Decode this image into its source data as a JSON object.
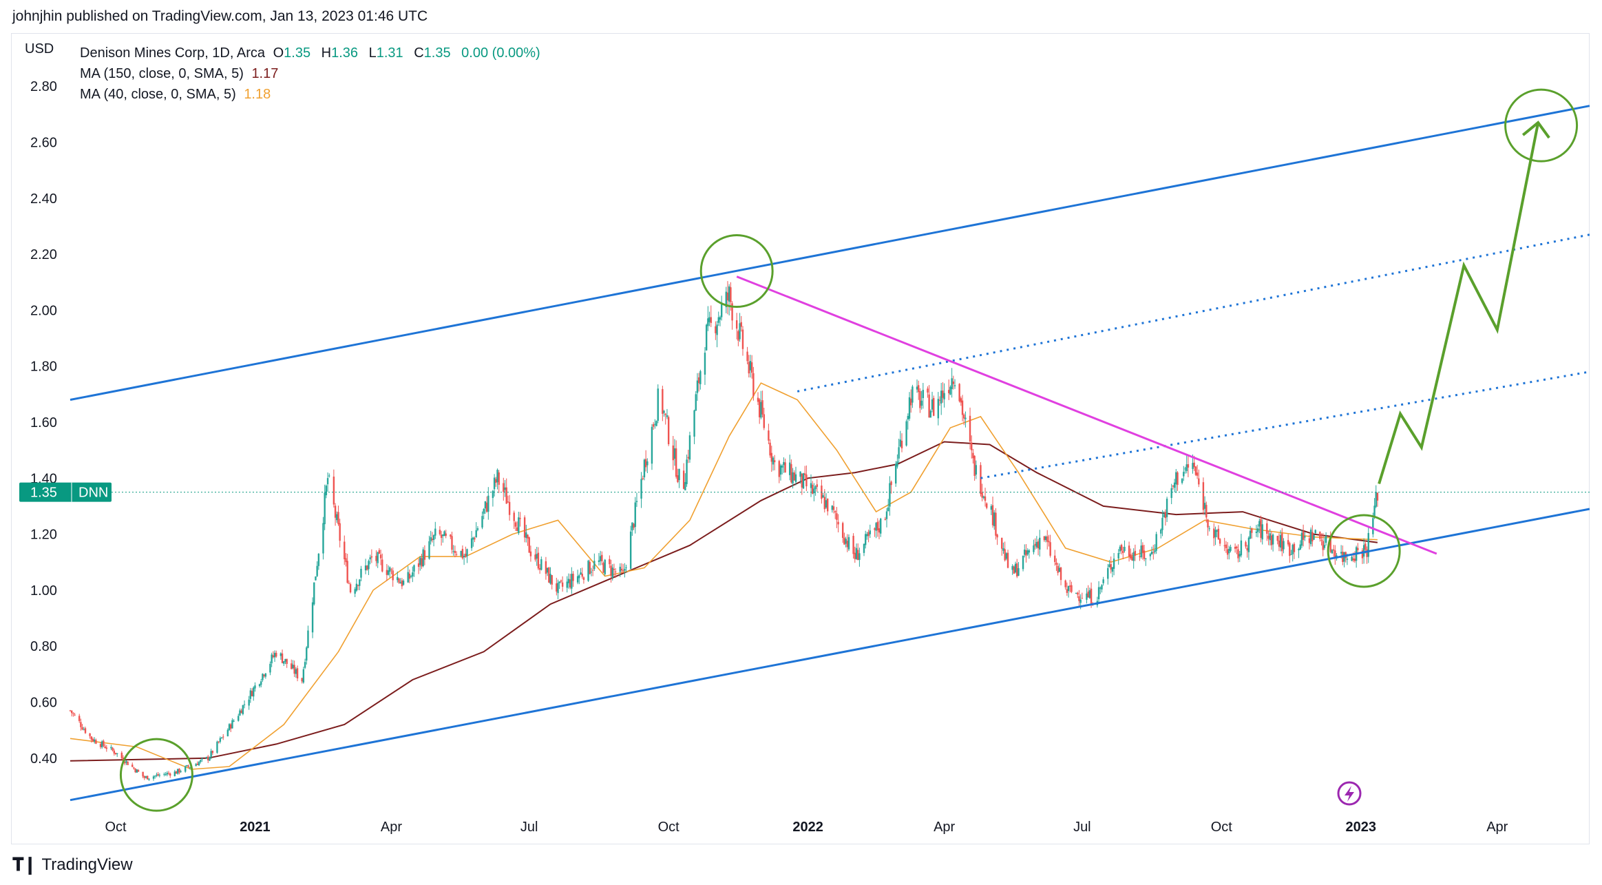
{
  "header": {
    "publish_text": "johnjhin published on TradingView.com, Jan 13, 2023 01:46 UTC"
  },
  "legend": {
    "currency": "USD",
    "symbol_line": "Denison Mines Corp, 1D, Arca",
    "ohlc": {
      "o_label": "O",
      "o": "1.35",
      "h_label": "H",
      "h": "1.36",
      "l_label": "L",
      "l": "1.31",
      "c_label": "C",
      "c": "1.35",
      "change": "0.00 (0.00%)"
    },
    "ma150": {
      "label": "MA (150, close, 0, SMA, 5)",
      "value": "1.17"
    },
    "ma40": {
      "label": "MA (40, close, 0, SMA, 5)",
      "value": "1.18"
    }
  },
  "price_badge": {
    "price": "1.35",
    "ticker": "DNN"
  },
  "footer": {
    "brand": "TradingView",
    "brand_icon": "tradingview-logo-icon"
  },
  "colors": {
    "up": "#26a69a",
    "down": "#ef5350",
    "ma150": "#7b1c1c",
    "ma40": "#f0a030",
    "channel": "#1e74d6",
    "resistance": "#e040e0",
    "projection": "#5aa02c",
    "badge": "#089981"
  },
  "chart_data": {
    "type": "candlestick",
    "title": "Denison Mines Corp, 1D, Arca",
    "ylabel": "USD",
    "ylim": [
      0.21,
      2.99
    ],
    "y_ticks": [
      0.4,
      0.6,
      0.8,
      1.0,
      1.2,
      1.4,
      1.6,
      1.8,
      2.0,
      2.2,
      2.4,
      2.6,
      2.8
    ],
    "y_tick_labels": [
      "0.40",
      "0.60",
      "0.80",
      "1.00",
      "1.20",
      "1.40",
      "1.60",
      "1.80",
      "2.00",
      "2.20",
      "2.40",
      "2.60",
      "2.80"
    ],
    "xlim": [
      "2020-09-01",
      "2023-06-01"
    ],
    "x_ticks": [
      {
        "date": "2020-10-01",
        "label": "Oct"
      },
      {
        "date": "2021-01-01",
        "label": "2021"
      },
      {
        "date": "2021-04-01",
        "label": "Apr"
      },
      {
        "date": "2021-07-01",
        "label": "Jul"
      },
      {
        "date": "2021-10-01",
        "label": "Oct"
      },
      {
        "date": "2022-01-01",
        "label": "2022"
      },
      {
        "date": "2022-04-01",
        "label": "Apr"
      },
      {
        "date": "2022-07-01",
        "label": "Jul"
      },
      {
        "date": "2022-10-01",
        "label": "Oct"
      },
      {
        "date": "2023-01-01",
        "label": "2023"
      },
      {
        "date": "2023-04-01",
        "label": "Apr"
      }
    ],
    "price_key_points": [
      [
        "2020-09-01",
        0.57
      ],
      [
        "2020-09-15",
        0.47
      ],
      [
        "2020-10-01",
        0.42
      ],
      [
        "2020-10-20",
        0.33
      ],
      [
        "2020-11-10",
        0.35
      ],
      [
        "2020-12-01",
        0.4
      ],
      [
        "2020-12-20",
        0.55
      ],
      [
        "2021-01-15",
        0.78
      ],
      [
        "2021-02-01",
        0.68
      ],
      [
        "2021-02-18",
        1.4
      ],
      [
        "2021-03-05",
        1.0
      ],
      [
        "2021-03-20",
        1.12
      ],
      [
        "2021-04-10",
        1.02
      ],
      [
        "2021-05-01",
        1.2
      ],
      [
        "2021-05-20",
        1.12
      ],
      [
        "2021-06-10",
        1.4
      ],
      [
        "2021-07-01",
        1.15
      ],
      [
        "2021-07-20",
        1.0
      ],
      [
        "2021-08-15",
        1.1
      ],
      [
        "2021-09-01",
        1.05
      ],
      [
        "2021-09-15",
        1.45
      ],
      [
        "2021-09-25",
        1.7
      ],
      [
        "2021-10-10",
        1.35
      ],
      [
        "2021-10-25",
        1.9
      ],
      [
        "2021-11-10",
        2.05
      ],
      [
        "2021-11-25",
        1.75
      ],
      [
        "2021-12-10",
        1.45
      ],
      [
        "2021-12-25",
        1.4
      ],
      [
        "2022-01-15",
        1.3
      ],
      [
        "2022-02-01",
        1.12
      ],
      [
        "2022-02-20",
        1.25
      ],
      [
        "2022-03-10",
        1.7
      ],
      [
        "2022-03-25",
        1.65
      ],
      [
        "2022-04-08",
        1.78
      ],
      [
        "2022-04-20",
        1.45
      ],
      [
        "2022-05-01",
        1.3
      ],
      [
        "2022-05-15",
        1.05
      ],
      [
        "2022-06-05",
        1.2
      ],
      [
        "2022-06-20",
        1.0
      ],
      [
        "2022-07-10",
        0.97
      ],
      [
        "2022-07-25",
        1.15
      ],
      [
        "2022-08-15",
        1.12
      ],
      [
        "2022-09-01",
        1.4
      ],
      [
        "2022-09-12",
        1.45
      ],
      [
        "2022-09-25",
        1.2
      ],
      [
        "2022-10-10",
        1.12
      ],
      [
        "2022-10-25",
        1.22
      ],
      [
        "2022-11-15",
        1.15
      ],
      [
        "2022-12-01",
        1.2
      ],
      [
        "2022-12-20",
        1.12
      ],
      [
        "2023-01-05",
        1.15
      ],
      [
        "2023-01-12",
        1.35
      ]
    ],
    "ma150_key_points": [
      [
        "2020-09-01",
        0.39
      ],
      [
        "2020-12-01",
        0.4
      ],
      [
        "2021-01-15",
        0.45
      ],
      [
        "2021-03-01",
        0.52
      ],
      [
        "2021-04-15",
        0.68
      ],
      [
        "2021-06-01",
        0.78
      ],
      [
        "2021-07-15",
        0.95
      ],
      [
        "2021-09-01",
        1.06
      ],
      [
        "2021-10-15",
        1.16
      ],
      [
        "2021-12-01",
        1.32
      ],
      [
        "2022-01-01",
        1.4
      ],
      [
        "2022-02-01",
        1.42
      ],
      [
        "2022-03-01",
        1.45
      ],
      [
        "2022-04-01",
        1.53
      ],
      [
        "2022-05-01",
        1.52
      ],
      [
        "2022-06-01",
        1.42
      ],
      [
        "2022-07-15",
        1.3
      ],
      [
        "2022-09-01",
        1.27
      ],
      [
        "2022-10-15",
        1.28
      ],
      [
        "2022-12-01",
        1.2
      ],
      [
        "2023-01-12",
        1.17
      ]
    ],
    "ma40_key_points": [
      [
        "2020-09-01",
        0.47
      ],
      [
        "2020-10-15",
        0.44
      ],
      [
        "2020-11-20",
        0.36
      ],
      [
        "2020-12-15",
        0.37
      ],
      [
        "2021-01-20",
        0.52
      ],
      [
        "2021-02-25",
        0.78
      ],
      [
        "2021-03-20",
        1.0
      ],
      [
        "2021-04-20",
        1.12
      ],
      [
        "2021-05-20",
        1.12
      ],
      [
        "2021-06-20",
        1.2
      ],
      [
        "2021-07-20",
        1.25
      ],
      [
        "2021-08-20",
        1.05
      ],
      [
        "2021-09-15",
        1.08
      ],
      [
        "2021-10-15",
        1.25
      ],
      [
        "2021-11-10",
        1.55
      ],
      [
        "2021-12-01",
        1.74
      ],
      [
        "2021-12-25",
        1.68
      ],
      [
        "2022-01-20",
        1.5
      ],
      [
        "2022-02-15",
        1.28
      ],
      [
        "2022-03-10",
        1.35
      ],
      [
        "2022-04-05",
        1.58
      ],
      [
        "2022-04-25",
        1.62
      ],
      [
        "2022-05-20",
        1.42
      ],
      [
        "2022-06-20",
        1.15
      ],
      [
        "2022-07-20",
        1.1
      ],
      [
        "2022-08-20",
        1.15
      ],
      [
        "2022-09-20",
        1.25
      ],
      [
        "2022-10-20",
        1.22
      ],
      [
        "2022-12-01",
        1.19
      ],
      [
        "2023-01-12",
        1.18
      ]
    ],
    "drawings": {
      "channel_upper": [
        [
          "2020-09-01",
          1.68
        ],
        [
          "2023-06-01",
          2.73
        ]
      ],
      "channel_lower": [
        [
          "2020-09-01",
          0.25
        ],
        [
          "2023-06-01",
          1.29
        ]
      ],
      "dotted_upper": [
        [
          "2021-12-25",
          1.71
        ],
        [
          "2023-06-01",
          2.27
        ]
      ],
      "dotted_middle": [
        [
          "2022-04-25",
          1.4
        ],
        [
          "2023-06-01",
          1.78
        ]
      ],
      "resistance": [
        [
          "2021-11-15",
          2.12
        ],
        [
          "2023-02-20",
          1.13
        ]
      ],
      "projection_path": [
        [
          "2023-01-13",
          1.38
        ],
        [
          "2023-01-27",
          1.63
        ],
        [
          "2023-02-10",
          1.51
        ],
        [
          "2023-03-10",
          2.16
        ],
        [
          "2023-04-01",
          1.93
        ],
        [
          "2023-04-28",
          2.67
        ]
      ],
      "highlight_circles": [
        [
          "2020-10-28",
          0.34
        ],
        [
          "2021-11-15",
          2.14
        ],
        [
          "2023-01-03",
          1.14
        ],
        [
          "2023-04-30",
          2.66
        ]
      ]
    },
    "last_price": 1.35,
    "grid": false
  }
}
